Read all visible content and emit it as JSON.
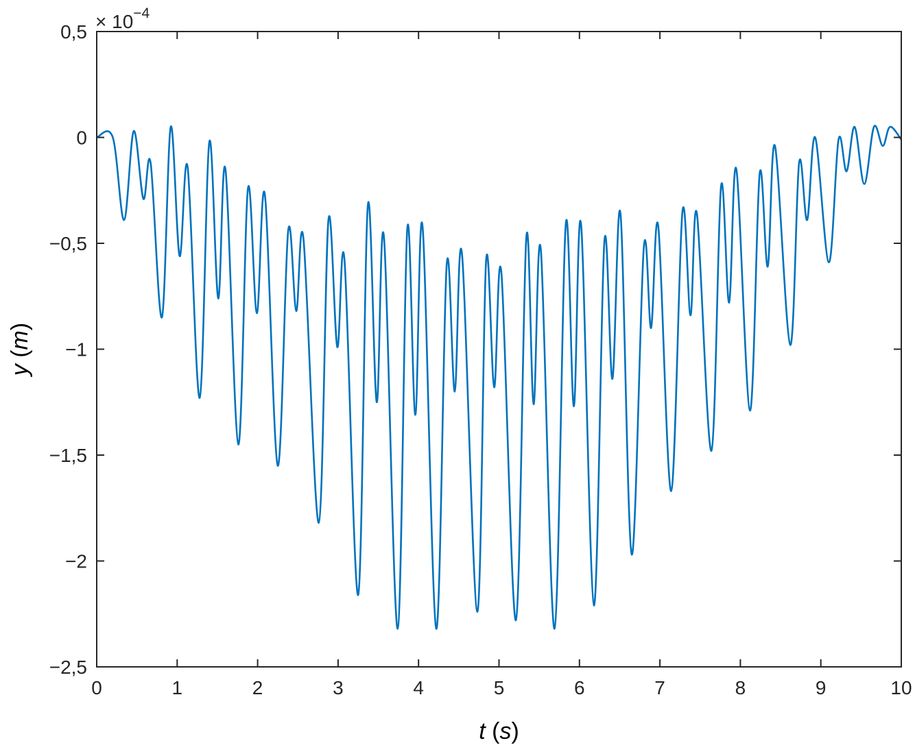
{
  "chart_data": {
    "type": "line",
    "xlabel": "t (s)",
    "xlabel_var": "t",
    "xlabel_unit": "(s)",
    "ylabel": "y (m)",
    "ylabel_var": "y",
    "ylabel_unit": "(m)",
    "y_multiplier": "× 10",
    "y_exponent": "−4",
    "xlim": [
      0,
      10
    ],
    "ylim": [
      -2.5,
      0.5
    ],
    "x_ticks": [
      0,
      1,
      2,
      3,
      4,
      5,
      6,
      7,
      8,
      9,
      10
    ],
    "x_tick_labels": [
      "0",
      "1",
      "2",
      "3",
      "4",
      "5",
      "6",
      "7",
      "8",
      "9",
      "10"
    ],
    "y_ticks": [
      0.5,
      0,
      -0.5,
      -1,
      -1.5,
      -2,
      -2.5
    ],
    "y_tick_labels": [
      "0,5",
      "0",
      "−0,5",
      "−1",
      "−1,5",
      "−2",
      "−2,5"
    ],
    "grid": false,
    "line_color": "#0072BD",
    "axis_color": "#262626",
    "series": [
      {
        "values_unit": "1e-4 m",
        "points": [
          [
            0,
            0
          ],
          [
            0.2,
            0
          ],
          [
            0.34,
            -0.39
          ],
          [
            0.46,
            0.03
          ],
          [
            0.58,
            -0.29
          ],
          [
            0.67,
            -0.12
          ],
          [
            0.81,
            -0.85
          ],
          [
            0.92,
            0.05
          ],
          [
            1.03,
            -0.56
          ],
          [
            1.13,
            -0.14
          ],
          [
            1.28,
            -1.23
          ],
          [
            1.4,
            -0.02
          ],
          [
            1.51,
            -0.76
          ],
          [
            1.6,
            -0.15
          ],
          [
            1.76,
            -1.45
          ],
          [
            1.88,
            -0.24
          ],
          [
            1.99,
            -0.83
          ],
          [
            2.09,
            -0.27
          ],
          [
            2.25,
            -1.55
          ],
          [
            2.38,
            -0.44
          ],
          [
            2.48,
            -0.82
          ],
          [
            2.57,
            -0.48
          ],
          [
            2.76,
            -1.82
          ],
          [
            2.88,
            -0.39
          ],
          [
            2.99,
            -0.99
          ],
          [
            3.08,
            -0.58
          ],
          [
            3.25,
            -2.16
          ],
          [
            3.37,
            -0.32
          ],
          [
            3.48,
            -1.25
          ],
          [
            3.57,
            -0.47
          ],
          [
            3.74,
            -2.32
          ],
          [
            3.86,
            -0.43
          ],
          [
            3.96,
            -1.31
          ],
          [
            4.05,
            -0.42
          ],
          [
            4.22,
            -2.32
          ],
          [
            4.35,
            -0.6
          ],
          [
            4.45,
            -1.2
          ],
          [
            4.54,
            -0.55
          ],
          [
            4.73,
            -2.24
          ],
          [
            4.84,
            -0.58
          ],
          [
            4.94,
            -1.18
          ],
          [
            5.03,
            -0.64
          ],
          [
            5.21,
            -2.28
          ],
          [
            5.34,
            -0.47
          ],
          [
            5.43,
            -1.26
          ],
          [
            5.52,
            -0.53
          ],
          [
            5.69,
            -2.32
          ],
          [
            5.83,
            -0.41
          ],
          [
            5.93,
            -1.27
          ],
          [
            6.02,
            -0.41
          ],
          [
            6.18,
            -2.21
          ],
          [
            6.31,
            -0.49
          ],
          [
            6.41,
            -1.14
          ],
          [
            6.51,
            -0.36
          ],
          [
            6.65,
            -1.97
          ],
          [
            6.8,
            -0.52
          ],
          [
            6.89,
            -0.9
          ],
          [
            6.98,
            -0.42
          ],
          [
            7.14,
            -1.67
          ],
          [
            7.28,
            -0.35
          ],
          [
            7.38,
            -0.84
          ],
          [
            7.46,
            -0.36
          ],
          [
            7.64,
            -1.48
          ],
          [
            7.76,
            -0.23
          ],
          [
            7.86,
            -0.78
          ],
          [
            7.95,
            -0.15
          ],
          [
            8.12,
            -1.29
          ],
          [
            8.24,
            -0.17
          ],
          [
            8.34,
            -0.61
          ],
          [
            8.43,
            -0.04
          ],
          [
            8.62,
            -0.98
          ],
          [
            8.73,
            -0.12
          ],
          [
            8.83,
            -0.39
          ],
          [
            8.93,
            0.0
          ],
          [
            9.1,
            -0.59
          ],
          [
            9.22,
            -0.01
          ],
          [
            9.32,
            -0.16
          ],
          [
            9.42,
            0.05
          ],
          [
            9.54,
            -0.22
          ],
          [
            9.66,
            0.05
          ],
          [
            9.77,
            -0.04
          ],
          [
            9.86,
            0.05
          ],
          [
            10,
            -0.01
          ]
        ]
      }
    ]
  }
}
